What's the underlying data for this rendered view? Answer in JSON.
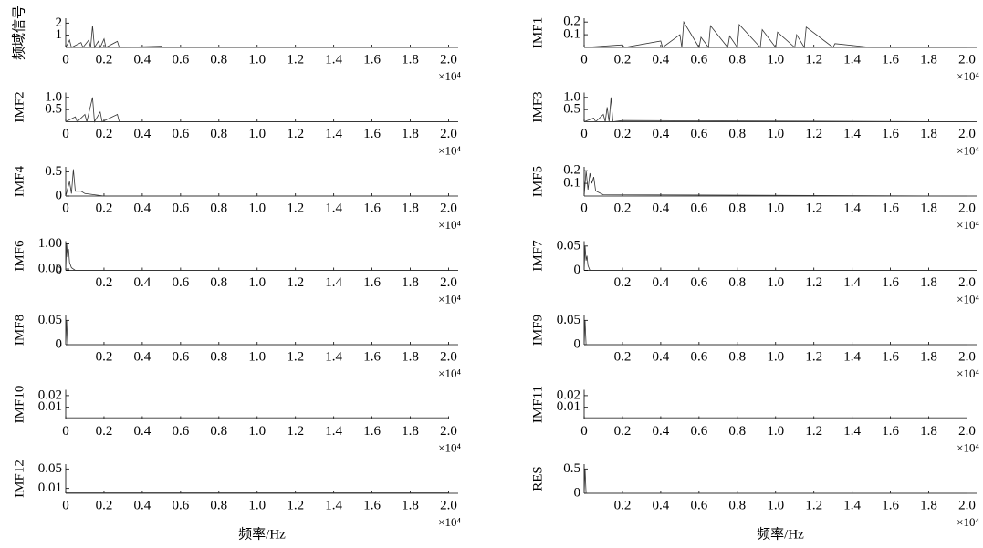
{
  "chart_data": [
    {
      "type": "line",
      "ylabel": "频域信号",
      "x_exponent": "×10⁴",
      "xlim": [
        0,
        2.05
      ],
      "ylim": [
        0,
        2.4
      ],
      "yticks": [
        1,
        2
      ],
      "xticks": [
        0,
        0.2,
        0.4,
        0.6,
        0.8,
        {
          "value": 1,
          "label": "1.0"
        },
        1.2,
        1.4,
        1.6,
        1.8,
        {
          "value": 2,
          "label": "2.0"
        }
      ],
      "color": "#333333",
      "x": [
        0,
        0.02,
        0.03,
        0.08,
        0.09,
        0.12,
        0.13,
        0.14,
        0.15,
        0.17,
        0.18,
        0.2,
        0.21,
        0.27,
        0.28,
        0.5,
        0.51,
        2.0
      ],
      "values": [
        0,
        0.6,
        0,
        0.4,
        0,
        0.6,
        0,
        1.8,
        0,
        0.5,
        0,
        0.7,
        0,
        0.5,
        0,
        0.1,
        0,
        0
      ]
    },
    {
      "type": "line",
      "ylabel": "IMF1",
      "x_exponent": "×10⁴",
      "xlim": [
        0,
        2.05
      ],
      "ylim": [
        0,
        0.23
      ],
      "yticks": [
        0.1,
        0.2
      ],
      "xticks": [
        0,
        0.2,
        0.4,
        0.6,
        0.8,
        {
          "value": 1,
          "label": "1.0"
        },
        1.2,
        1.4,
        1.6,
        1.8,
        {
          "value": 2,
          "label": "2.0"
        }
      ],
      "color": "#333333",
      "x": [
        0,
        0.2,
        0.21,
        0.4,
        0.41,
        0.5,
        0.51,
        0.52,
        0.6,
        0.61,
        0.65,
        0.66,
        0.75,
        0.76,
        0.8,
        0.81,
        0.92,
        0.93,
        1.0,
        1.01,
        1.1,
        1.11,
        1.15,
        1.16,
        1.3,
        1.31,
        1.5,
        2.0
      ],
      "values": [
        0,
        0.02,
        0,
        0.05,
        0,
        0.1,
        0,
        0.2,
        0,
        0.08,
        0,
        0.17,
        0,
        0.09,
        0,
        0.18,
        0,
        0.14,
        0,
        0.12,
        0,
        0.1,
        0,
        0.16,
        0,
        0.03,
        0,
        0
      ]
    },
    {
      "type": "line",
      "ylabel": "IMF2",
      "x_exponent": "×10⁴",
      "xlim": [
        0,
        2.05
      ],
      "ylim": [
        0,
        1.2
      ],
      "yticks": [
        0.5,
        {
          "value": 1,
          "label": "1.0"
        }
      ],
      "xticks": [
        0,
        0.2,
        0.4,
        0.6,
        0.8,
        {
          "value": 1,
          "label": "1.0"
        },
        1.2,
        1.4,
        1.6,
        1.8,
        {
          "value": 2,
          "label": "2.0"
        }
      ],
      "color": "#333333",
      "x": [
        0,
        0.05,
        0.06,
        0.1,
        0.11,
        0.14,
        0.15,
        0.18,
        0.19,
        0.27,
        0.28,
        2.0
      ],
      "values": [
        0,
        0.2,
        0,
        0.3,
        0,
        1.0,
        0,
        0.4,
        0,
        0.3,
        0,
        0
      ]
    },
    {
      "type": "line",
      "ylabel": "IMF3",
      "x_exponent": "×10⁴",
      "xlim": [
        0,
        2.05
      ],
      "ylim": [
        0,
        1.2
      ],
      "yticks": [
        0.5,
        {
          "value": 1,
          "label": "1.0"
        }
      ],
      "xticks": [
        0,
        0.2,
        0.4,
        0.6,
        0.8,
        {
          "value": 1,
          "label": "1.0"
        },
        1.2,
        1.4,
        1.6,
        1.8,
        {
          "value": 2,
          "label": "2.0"
        }
      ],
      "color": "#333333",
      "x": [
        0,
        0.05,
        0.06,
        0.1,
        0.11,
        0.12,
        0.13,
        0.14,
        0.15,
        0.2,
        2.0
      ],
      "values": [
        0,
        0.15,
        0,
        0.3,
        0,
        0.6,
        0,
        1.0,
        0,
        0.05,
        0
      ]
    },
    {
      "type": "line",
      "ylabel": "IMF4",
      "x_exponent": "×10⁴",
      "xlim": [
        0,
        2.05
      ],
      "ylim": [
        0,
        0.6
      ],
      "yticks": [
        0,
        0.5
      ],
      "xticks": [
        0,
        0.2,
        0.4,
        0.6,
        0.8,
        {
          "value": 1,
          "label": "1.0"
        },
        1.2,
        1.4,
        1.6,
        1.8,
        {
          "value": 2,
          "label": "2.0"
        }
      ],
      "color": "#333333",
      "x": [
        0,
        0.02,
        0.03,
        0.04,
        0.05,
        0.08,
        0.1,
        0.2,
        2.0
      ],
      "values": [
        0,
        0.3,
        0.05,
        0.55,
        0.1,
        0.1,
        0.05,
        0,
        0
      ]
    },
    {
      "type": "line",
      "ylabel": "IMF5",
      "x_exponent": "×10⁴",
      "xlim": [
        0,
        2.05
      ],
      "ylim": [
        0,
        0.23
      ],
      "yticks": [
        0.1,
        0.2
      ],
      "xticks": [
        0,
        0.2,
        0.4,
        0.6,
        0.8,
        {
          "value": 1,
          "label": "1.0"
        },
        1.2,
        1.4,
        1.6,
        1.8,
        {
          "value": 2,
          "label": "2.0"
        }
      ],
      "color": "#333333",
      "x": [
        0,
        0.01,
        0.02,
        0.03,
        0.04,
        0.05,
        0.06,
        0.1,
        2.0
      ],
      "values": [
        0,
        0.2,
        0.05,
        0.18,
        0.1,
        0.15,
        0.04,
        0.01,
        0
      ]
    },
    {
      "type": "line",
      "ylabel": "IMF6",
      "x_exponent": "×10⁴",
      "xlim": [
        0,
        2.05
      ],
      "ylim": [
        0,
        1.1
      ],
      "yticks": [
        0,
        0.05,
        {
          "value": 1,
          "label": "1.00"
        }
      ],
      "xticks": [
        0.2,
        0.4,
        0.6,
        0.8,
        {
          "value": 1,
          "label": "1.0"
        },
        1.2,
        1.4,
        1.6,
        1.8,
        {
          "value": 2,
          "label": "2.0"
        }
      ],
      "color": "#333333",
      "x": [
        0,
        0.005,
        0.01,
        0.015,
        0.02,
        0.03,
        0.05,
        2.0
      ],
      "values": [
        0,
        1.0,
        0.5,
        0.8,
        0.3,
        0.1,
        0,
        0
      ]
    },
    {
      "type": "line",
      "ylabel": "IMF7",
      "x_exponent": "×10⁴",
      "xlim": [
        0,
        2.05
      ],
      "ylim": [
        0,
        0.06
      ],
      "yticks": [
        0,
        0.05
      ],
      "xticks": [
        0.2,
        0.4,
        0.6,
        0.8,
        {
          "value": 1,
          "label": "1.0"
        },
        1.2,
        1.4,
        1.6,
        1.8,
        {
          "value": 2,
          "label": "2.0"
        }
      ],
      "color": "#333333",
      "x": [
        0,
        0.005,
        0.01,
        0.015,
        0.02,
        0.03,
        2.0
      ],
      "values": [
        0,
        0.05,
        0.02,
        0.03,
        0.01,
        0,
        0
      ]
    },
    {
      "type": "line",
      "ylabel": "IMF8",
      "x_exponent": "×10⁴",
      "xlim": [
        0,
        2.05
      ],
      "ylim": [
        0,
        0.06
      ],
      "yticks": [
        0,
        0.05
      ],
      "xticks": [
        0.2,
        0.4,
        0.6,
        0.8,
        {
          "value": 1,
          "label": "1.0"
        },
        1.2,
        1.4,
        1.6,
        1.8,
        {
          "value": 2,
          "label": "2.0"
        }
      ],
      "color": "#333333",
      "x": [
        0,
        0.005,
        0.01,
        2.0
      ],
      "values": [
        0,
        0.05,
        0,
        0
      ]
    },
    {
      "type": "line",
      "ylabel": "IMF9",
      "x_exponent": "×10⁴",
      "xlim": [
        0,
        2.05
      ],
      "ylim": [
        0,
        0.06
      ],
      "yticks": [
        0,
        0.05
      ],
      "xticks": [
        0.2,
        0.4,
        0.6,
        0.8,
        {
          "value": 1,
          "label": "1.0"
        },
        1.2,
        1.4,
        1.6,
        1.8,
        {
          "value": 2,
          "label": "2.0"
        }
      ],
      "color": "#333333",
      "x": [
        0,
        0.005,
        0.01,
        2.0
      ],
      "values": [
        0,
        0.05,
        0,
        0
      ]
    },
    {
      "type": "line",
      "ylabel": "IMF10",
      "x_exponent": "×10⁴",
      "xlim": [
        0,
        2.05
      ],
      "ylim": [
        0,
        0.025
      ],
      "yticks": [
        0.01,
        0.02
      ],
      "xticks": [
        0,
        0.2,
        0.4,
        0.6,
        0.8,
        {
          "value": 1,
          "label": "1.0"
        },
        1.2,
        1.4,
        1.6,
        1.8,
        {
          "value": 2,
          "label": "2.0"
        }
      ],
      "color": "#333333",
      "x": [
        0,
        0.5,
        1.0,
        2.0
      ],
      "values": [
        0.001,
        0.001,
        0.001,
        0.001
      ]
    },
    {
      "type": "line",
      "ylabel": "IMF11",
      "x_exponent": "×10⁴",
      "xlim": [
        0,
        2.05
      ],
      "ylim": [
        0,
        0.025
      ],
      "yticks": [
        0.01,
        0.02
      ],
      "xticks": [
        0,
        0.2,
        0.4,
        0.6,
        0.8,
        {
          "value": 1,
          "label": "1.0"
        },
        1.2,
        1.4,
        1.6,
        1.8,
        {
          "value": 2,
          "label": "2.0"
        }
      ],
      "color": "#333333",
      "x": [
        0,
        0.5,
        1.0,
        2.0
      ],
      "values": [
        0.001,
        0.001,
        0.001,
        0.001
      ]
    },
    {
      "type": "line",
      "ylabel": "IMF12",
      "xlabel": "频率/Hz",
      "x_exponent": "×10⁴",
      "xlim": [
        0,
        2.05
      ],
      "ylim": [
        0,
        0.06
      ],
      "yticks": [
        0.05,
        0.01
      ],
      "xticks": [
        0,
        0.2,
        0.4,
        0.6,
        0.8,
        {
          "value": 1,
          "label": "1.0"
        },
        1.2,
        1.4,
        1.6,
        1.8,
        {
          "value": 2,
          "label": "2.0"
        }
      ],
      "color": "#333333",
      "x": [
        0,
        0.5,
        1.0,
        2.0
      ],
      "values": [
        0.001,
        0.001,
        0.001,
        0.001
      ]
    },
    {
      "type": "line",
      "ylabel": "RES",
      "xlabel": "频率/Hz",
      "x_exponent": "×10⁴",
      "xlim": [
        0,
        2.05
      ],
      "ylim": [
        0,
        0.6
      ],
      "yticks": [
        0,
        0.5
      ],
      "xticks": [
        0.2,
        0.4,
        0.6,
        0.8,
        {
          "value": 1,
          "label": "1.0"
        },
        1.2,
        1.4,
        1.6,
        1.8,
        {
          "value": 2,
          "label": "2.0"
        }
      ],
      "color": "#333333",
      "x": [
        0,
        0.005,
        0.01,
        2.0
      ],
      "values": [
        0,
        0.5,
        0,
        0
      ]
    }
  ]
}
